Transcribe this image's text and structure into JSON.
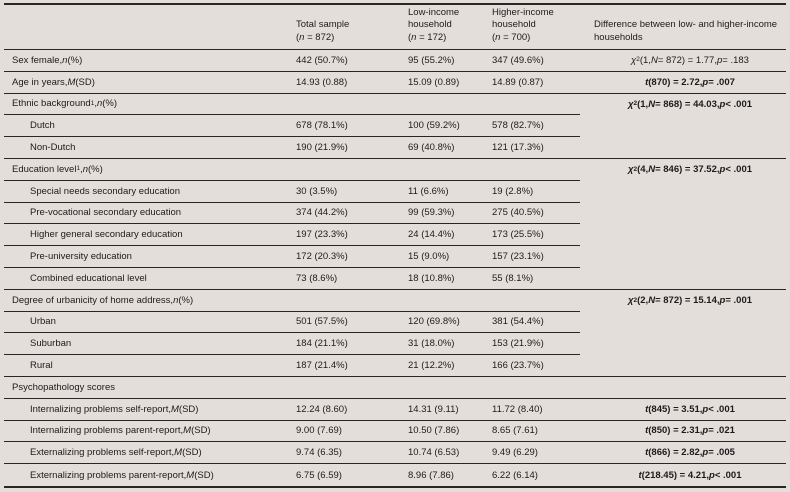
{
  "colors": {
    "background": "#e4dedb",
    "line": "#2b2624",
    "text": "#1b1b1b"
  },
  "header": {
    "columns": [
      {
        "title": "",
        "sub": []
      },
      {
        "title": "Total sample",
        "sub": [
          {
            "t": "("
          },
          {
            "t": "n",
            "i": true
          },
          {
            "t": " = 872)"
          }
        ]
      },
      {
        "title": "Low-income household",
        "sub": [
          {
            "t": "("
          },
          {
            "t": "n",
            "i": true
          },
          {
            "t": " = 172)"
          }
        ]
      },
      {
        "title": "Higher-income household",
        "sub": [
          {
            "t": "("
          },
          {
            "t": "n",
            "i": true
          },
          {
            "t": " = 700)"
          }
        ]
      },
      {
        "title": "Difference between low- and higher-income households",
        "sub": []
      }
    ]
  },
  "rows": [
    {
      "label": [
        {
          "t": "Sex female, "
        },
        {
          "t": "n",
          "i": true
        },
        {
          "t": " (%)"
        }
      ],
      "indent": false,
      "total": "442 (50.7%)",
      "low": "95 (55.2%)",
      "high": "347 (49.6%)",
      "diff": [
        {
          "t": "χ",
          "i": true
        },
        {
          "t": "2",
          "sup": true
        },
        {
          "t": " (1, "
        },
        {
          "t": "N",
          "i": true
        },
        {
          "t": " = 872) = 1.77, "
        },
        {
          "t": "p",
          "i": true
        },
        {
          "t": " = .183"
        }
      ],
      "bold_diff": false,
      "border": "full"
    },
    {
      "label": [
        {
          "t": "Age in years, "
        },
        {
          "t": "M",
          "i": true
        },
        {
          "t": " (SD)"
        }
      ],
      "indent": false,
      "total": "14.93 (0.88)",
      "low": "15.09 (0.89)",
      "high": "14.89 (0.87)",
      "diff": [
        {
          "t": "t",
          "i": true
        },
        {
          "t": " (870) = 2.72, "
        },
        {
          "t": "p",
          "i": true
        },
        {
          "t": " = .007"
        }
      ],
      "bold_diff": true,
      "border": "full"
    },
    {
      "label": [
        {
          "t": "Ethnic background"
        },
        {
          "t": "1",
          "sup": true
        },
        {
          "t": ", "
        },
        {
          "t": "n",
          "i": true
        },
        {
          "t": " (%)"
        }
      ],
      "indent": false,
      "total": "",
      "low": "",
      "high": "",
      "diff": [
        {
          "t": "χ",
          "i": true
        },
        {
          "t": "2",
          "sup": true
        },
        {
          "t": " (1, "
        },
        {
          "t": "N",
          "i": true
        },
        {
          "t": " = 868) = 44.03, "
        },
        {
          "t": "p",
          "i": true
        },
        {
          "t": " < .001"
        }
      ],
      "bold_diff": true,
      "border": "partial"
    },
    {
      "label": [
        {
          "t": "Dutch"
        }
      ],
      "indent": true,
      "total": "678 (78.1%)",
      "low": "100 (59.2%)",
      "high": "578 (82.7%)",
      "diff": [],
      "bold_diff": false,
      "border": "partial"
    },
    {
      "label": [
        {
          "t": "Non-Dutch"
        }
      ],
      "indent": true,
      "total": "190 (21.9%)",
      "low": "69 (40.8%)",
      "high": "121 (17.3%)",
      "diff": [],
      "bold_diff": false,
      "border": "full"
    },
    {
      "label": [
        {
          "t": "Education level"
        },
        {
          "t": "1",
          "sup": true
        },
        {
          "t": ", "
        },
        {
          "t": "n",
          "i": true
        },
        {
          "t": " (%)"
        }
      ],
      "indent": false,
      "total": "",
      "low": "",
      "high": "",
      "diff": [
        {
          "t": "χ",
          "i": true
        },
        {
          "t": "2",
          "sup": true
        },
        {
          "t": " (4, "
        },
        {
          "t": "N",
          "i": true
        },
        {
          "t": " = 846) = 37.52, "
        },
        {
          "t": "p",
          "i": true
        },
        {
          "t": " < .001"
        }
      ],
      "bold_diff": true,
      "border": "partial"
    },
    {
      "label": [
        {
          "t": "Special needs secondary education"
        }
      ],
      "indent": true,
      "total": "30 (3.5%)",
      "low": "11 (6.6%)",
      "high": "19 (2.8%)",
      "diff": [],
      "bold_diff": false,
      "border": "partial"
    },
    {
      "label": [
        {
          "t": "Pre-vocational secondary education"
        }
      ],
      "indent": true,
      "total": "374 (44.2%)",
      "low": "99 (59.3%)",
      "high": "275 (40.5%)",
      "diff": [],
      "bold_diff": false,
      "border": "partial"
    },
    {
      "label": [
        {
          "t": "Higher general secondary education"
        }
      ],
      "indent": true,
      "total": "197 (23.3%)",
      "low": "24 (14.4%)",
      "high": "173 (25.5%)",
      "diff": [],
      "bold_diff": false,
      "border": "partial"
    },
    {
      "label": [
        {
          "t": "Pre-university education"
        }
      ],
      "indent": true,
      "total": "172 (20.3%)",
      "low": "15 (9.0%)",
      "high": "157 (23.1%)",
      "diff": [],
      "bold_diff": false,
      "border": "partial"
    },
    {
      "label": [
        {
          "t": "Combined educational level"
        }
      ],
      "indent": true,
      "total": "73 (8.6%)",
      "low": "18 (10.8%)",
      "high": "55 (8.1%)",
      "diff": [],
      "bold_diff": false,
      "border": "full"
    },
    {
      "label": [
        {
          "t": "Degree of urbanicity of home address, "
        },
        {
          "t": "n",
          "i": true
        },
        {
          "t": " (%)"
        }
      ],
      "indent": false,
      "total": "",
      "low": "",
      "high": "",
      "diff": [
        {
          "t": "χ",
          "i": true
        },
        {
          "t": "2",
          "sup": true
        },
        {
          "t": " (2, "
        },
        {
          "t": "N",
          "i": true
        },
        {
          "t": " = 872) = 15.14, "
        },
        {
          "t": "p",
          "i": true
        },
        {
          "t": " = .001"
        }
      ],
      "bold_diff": true,
      "border": "partial"
    },
    {
      "label": [
        {
          "t": "Urban"
        }
      ],
      "indent": true,
      "total": "501 (57.5%)",
      "low": "120 (69.8%)",
      "high": "381 (54.4%)",
      "diff": [],
      "bold_diff": false,
      "border": "partial"
    },
    {
      "label": [
        {
          "t": "Suburban"
        }
      ],
      "indent": true,
      "total": "184 (21.1%)",
      "low": "31 (18.0%)",
      "high": "153 (21.9%)",
      "diff": [],
      "bold_diff": false,
      "border": "partial"
    },
    {
      "label": [
        {
          "t": "Rural"
        }
      ],
      "indent": true,
      "total": "187 (21.4%)",
      "low": "21 (12.2%)",
      "high": "166 (23.7%)",
      "diff": [],
      "bold_diff": false,
      "border": "full"
    },
    {
      "label": [
        {
          "t": "Psychopathology scores"
        }
      ],
      "indent": false,
      "total": "",
      "low": "",
      "high": "",
      "diff": [],
      "bold_diff": false,
      "border": "full"
    },
    {
      "label": [
        {
          "t": "Internalizing problems self-report, "
        },
        {
          "t": "M",
          "i": true
        },
        {
          "t": " (SD)"
        }
      ],
      "indent": true,
      "total": "12.24 (8.60)",
      "low": "14.31 (9.11)",
      "high": "11.72 (8.40)",
      "diff": [
        {
          "t": "t",
          "i": true
        },
        {
          "t": " (845) = 3.51, "
        },
        {
          "t": "p",
          "i": true
        },
        {
          "t": " < .001"
        }
      ],
      "bold_diff": true,
      "border": "full"
    },
    {
      "label": [
        {
          "t": "Internalizing problems parent-report, "
        },
        {
          "t": "M",
          "i": true
        },
        {
          "t": " (SD)"
        }
      ],
      "indent": true,
      "total": "9.00 (7.69)",
      "low": "10.50 (7.86)",
      "high": "8.65 (7.61)",
      "diff": [
        {
          "t": "t",
          "i": true
        },
        {
          "t": " (850) = 2.31, "
        },
        {
          "t": "p",
          "i": true
        },
        {
          "t": " = .021"
        }
      ],
      "bold_diff": true,
      "border": "full"
    },
    {
      "label": [
        {
          "t": "Externalizing problems self-report, "
        },
        {
          "t": "M",
          "i": true
        },
        {
          "t": " (SD)"
        }
      ],
      "indent": true,
      "total": "9.74 (6.35)",
      "low": "10.74 (6.53)",
      "high": "9.49 (6.29)",
      "diff": [
        {
          "t": "t",
          "i": true
        },
        {
          "t": " (866) = 2.82, "
        },
        {
          "t": "p",
          "i": true
        },
        {
          "t": " = .005"
        }
      ],
      "bold_diff": true,
      "border": "full"
    },
    {
      "label": [
        {
          "t": "Externalizing problems parent-report, "
        },
        {
          "t": "M",
          "i": true
        },
        {
          "t": " (SD)"
        }
      ],
      "indent": true,
      "total": "6.75 (6.59)",
      "low": "8.96 (7.86)",
      "high": "6.22 (6.14)",
      "diff": [
        {
          "t": "t",
          "i": true
        },
        {
          "t": " (218.45) = 4.21, "
        },
        {
          "t": "p",
          "i": true
        },
        {
          "t": " < .001"
        }
      ],
      "bold_diff": true,
      "border": "none"
    }
  ]
}
